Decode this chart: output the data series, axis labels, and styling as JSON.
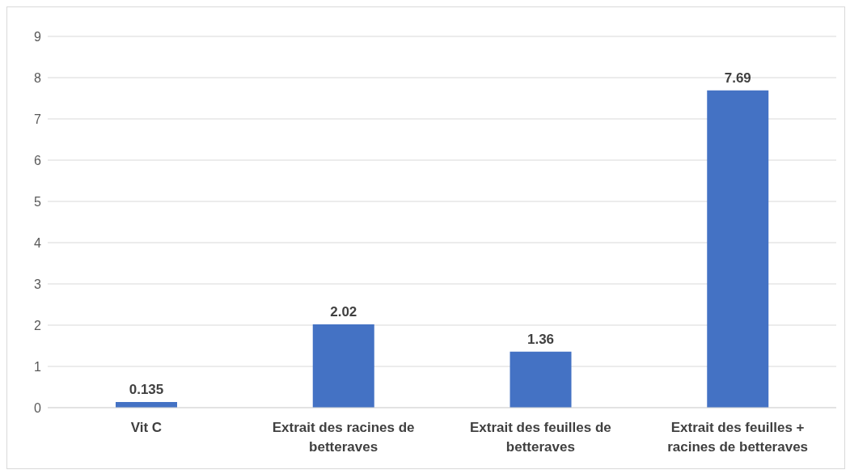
{
  "chart_data": {
    "type": "bar",
    "categories": [
      "Vit C",
      "Extrait des racines de betteraves",
      "Extrait des feuilles de betteraves",
      "Extrait des feuilles + racines de betteraves"
    ],
    "values": [
      0.135,
      2.02,
      1.36,
      7.69
    ],
    "color": "#4472c4",
    "ylim": [
      0,
      9
    ],
    "yticks": [
      0,
      1,
      2,
      3,
      4,
      5,
      6,
      7,
      8,
      9
    ],
    "grid": "y",
    "data_labels": true
  }
}
